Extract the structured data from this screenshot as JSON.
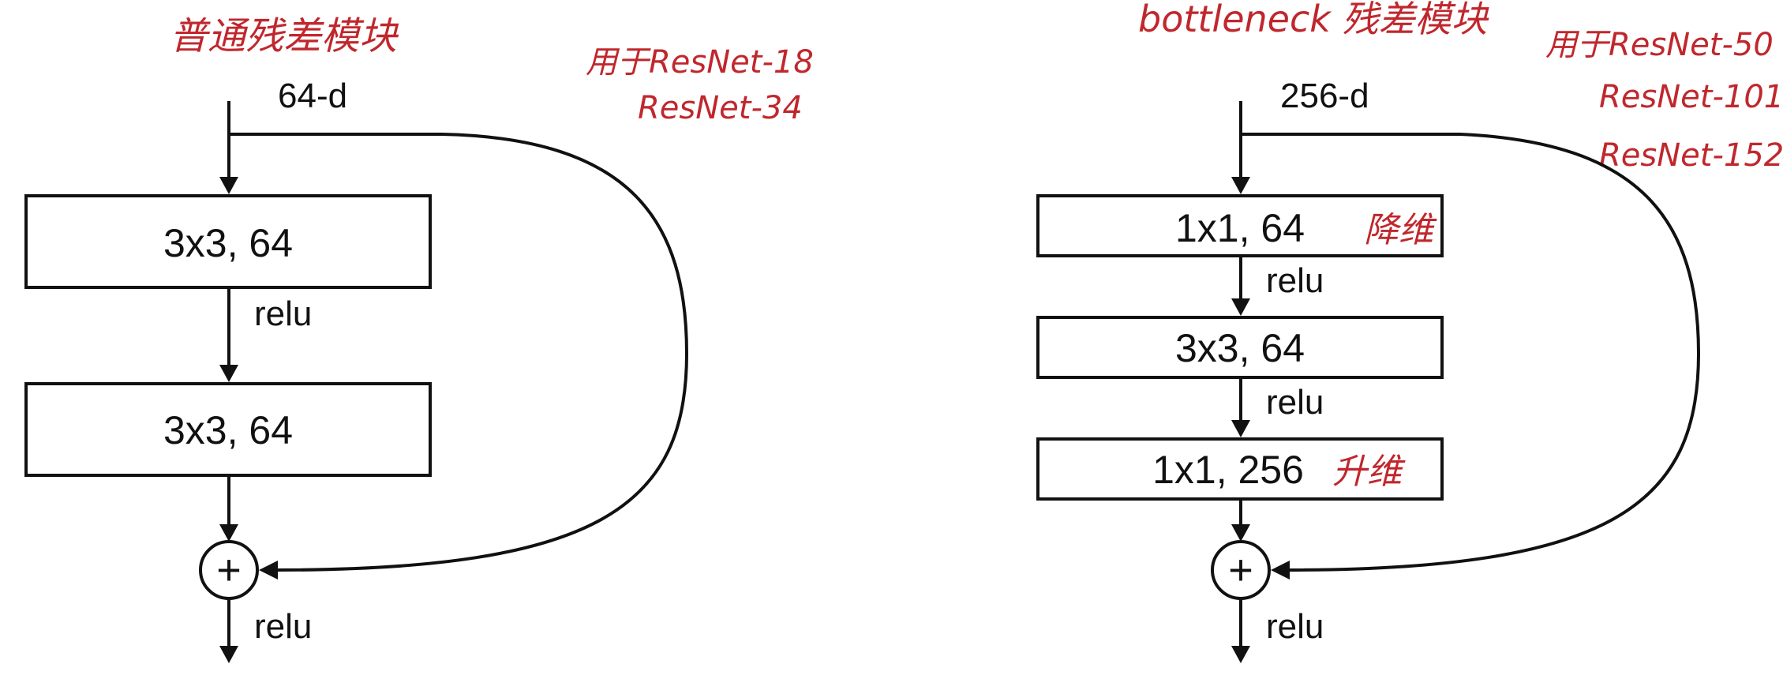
{
  "plain": {
    "title": "普通残差模块",
    "note_lines": [
      "用于ResNet-18",
      "ResNet-34"
    ],
    "input": "64-d",
    "layers": [
      "3x3, 64",
      "3x3, 64"
    ],
    "relu_mid": "relu",
    "add_symbol": "+",
    "relu_out": "relu"
  },
  "bottleneck": {
    "title": "bottleneck 残差模块",
    "note_lines": [
      "用于ResNet-50",
      "ResNet-101",
      "ResNet-152"
    ],
    "input": "256-d",
    "layers": [
      "1x1, 64",
      "3x3, 64",
      "1x1, 256"
    ],
    "layer_notes": {
      "reduce": "降维",
      "expand": "升维"
    },
    "relu_labels": [
      "relu",
      "relu"
    ],
    "add_symbol": "+",
    "relu_out": "relu"
  },
  "colors": {
    "ink": "#111111",
    "annotation": "#c0272d"
  }
}
